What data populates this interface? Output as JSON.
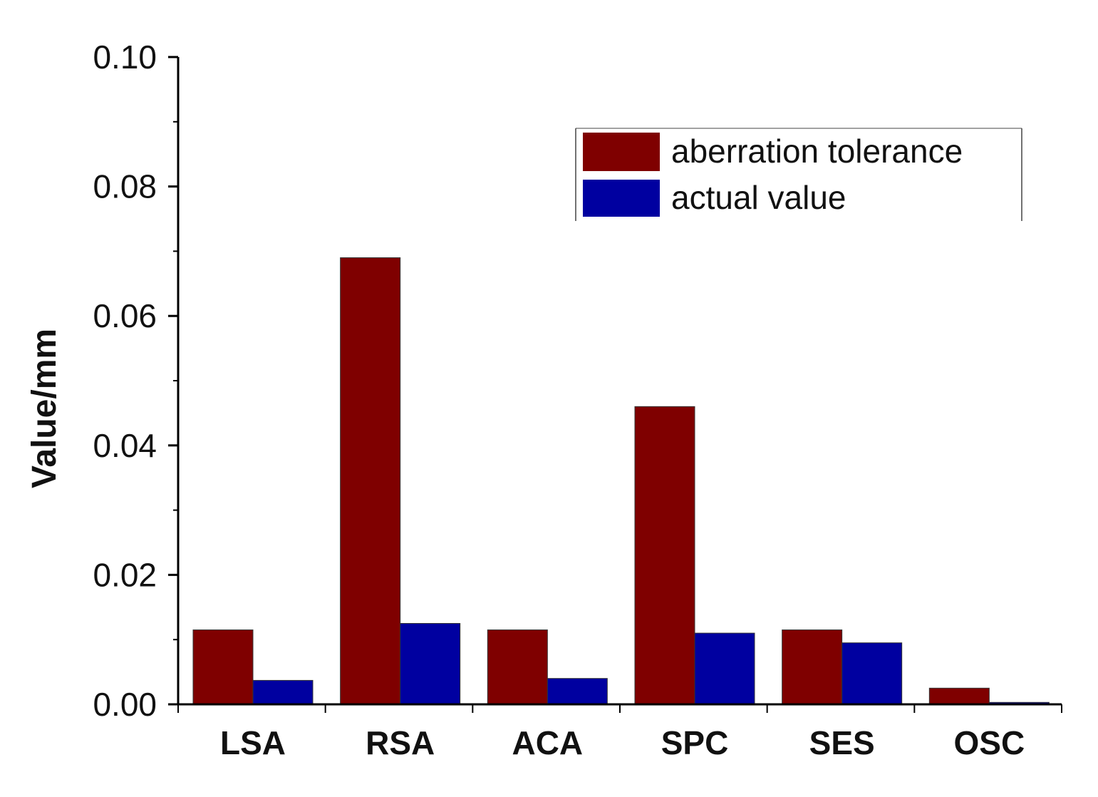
{
  "chart_data": {
    "type": "bar",
    "title": "",
    "xlabel": "",
    "ylabel": "Value/mm",
    "ylim": [
      0,
      0.1
    ],
    "yticks": [
      "0.00",
      "0.02",
      "0.04",
      "0.06",
      "0.08",
      "0.10"
    ],
    "ytick_values": [
      0,
      0.02,
      0.04,
      0.06,
      0.08,
      0.1
    ],
    "categories": [
      "LSA",
      "RSA",
      "ACA",
      "SPC",
      "SES",
      "OSC"
    ],
    "series": [
      {
        "name": "aberration tolerance",
        "color": "#7f0000",
        "values": [
          0.0115,
          0.069,
          0.0115,
          0.046,
          0.0115,
          0.0025
        ]
      },
      {
        "name": "actual value",
        "color": "#0000a0",
        "values": [
          0.0037,
          0.0125,
          0.004,
          0.011,
          0.0095,
          0.0003
        ]
      }
    ],
    "legend_position": "top-right",
    "grid": false
  }
}
